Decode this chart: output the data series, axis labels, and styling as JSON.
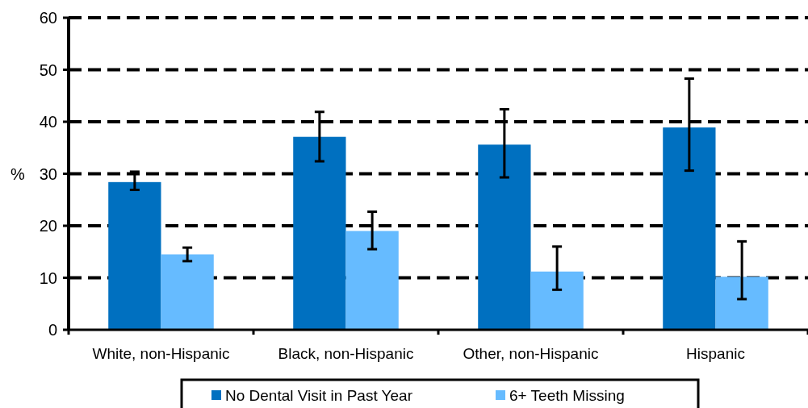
{
  "chart_data": {
    "type": "bar",
    "ylabel": "%",
    "categories": [
      "White, non-Hispanic",
      "Black, non-Hispanic",
      "Other, non-Hispanic",
      "Hispanic"
    ],
    "series": [
      {
        "name": "No Dental Visit in Past Year",
        "color": "#0070c0",
        "values": [
          28.4,
          37.1,
          35.6,
          38.9
        ],
        "errors": [
          [
            26.9,
            30.4
          ],
          [
            32.4,
            41.9
          ],
          [
            29.3,
            42.4
          ],
          [
            30.6,
            48.3
          ]
        ]
      },
      {
        "name": "6+ Teeth Missing",
        "color": "#66bbff",
        "values": [
          14.5,
          19.0,
          11.2,
          10.2
        ],
        "errors": [
          [
            13.2,
            15.8
          ],
          [
            15.5,
            22.7
          ],
          [
            7.7,
            16.0
          ],
          [
            5.9,
            17.0
          ]
        ]
      }
    ],
    "ylim": [
      0,
      60
    ],
    "yticks": [
      0,
      10,
      20,
      30,
      40,
      50,
      60
    ],
    "grid": "y",
    "line_style": "dashed",
    "legend": "bottom"
  }
}
